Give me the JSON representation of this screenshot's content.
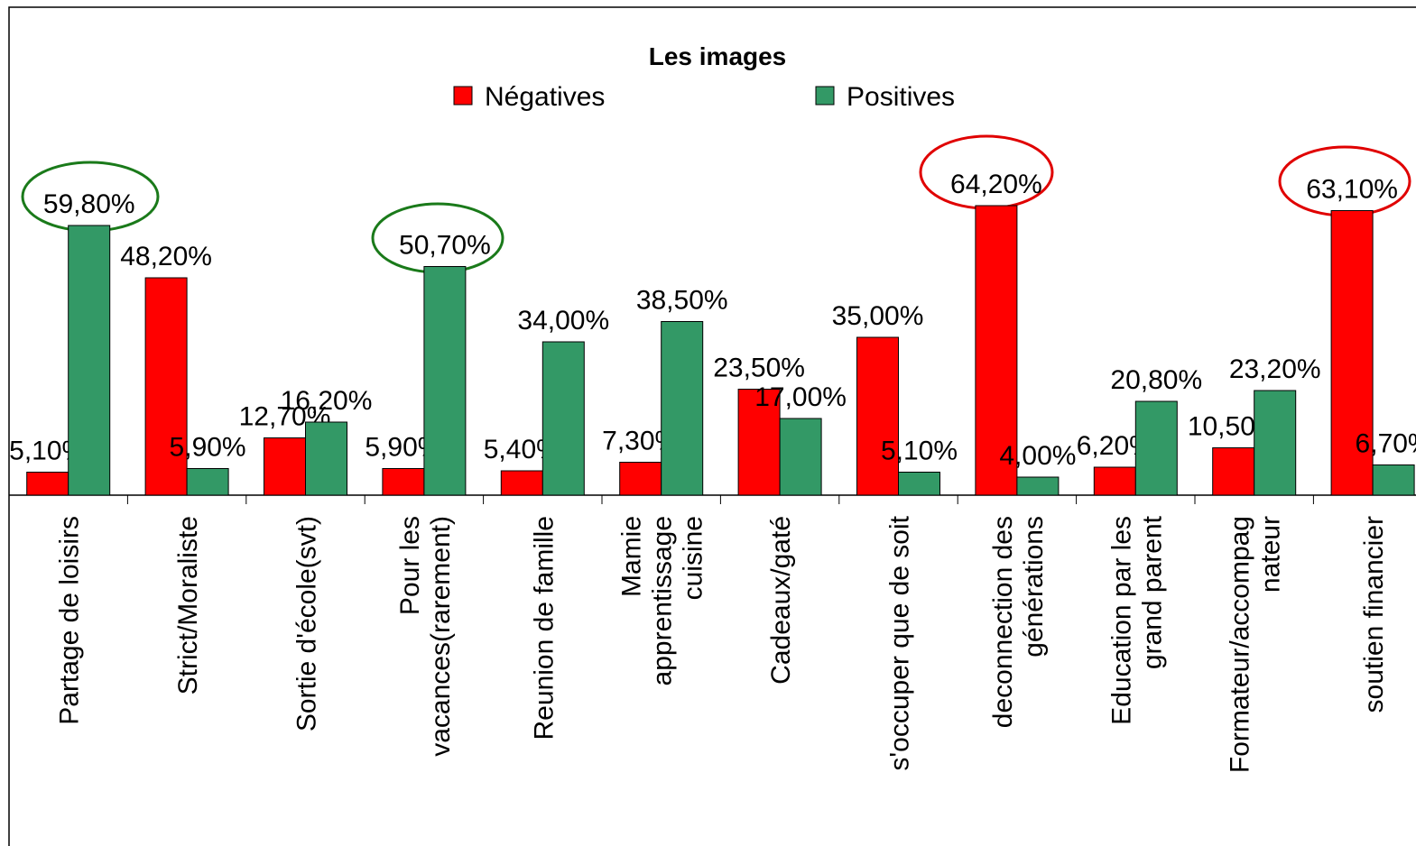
{
  "chart_data": {
    "type": "bar",
    "title": "Les images",
    "categories": [
      "Partage de loisirs",
      "Strict/Moraliste",
      "Sortie d'école(svt)",
      "Pour les\nvacances(rarement)",
      "Reunion de famille",
      "Mamie\napprentissage\ncuisine",
      "Cadeaux/gaté",
      "s'occuper que de soit",
      "deconnection des\ngénérations",
      "Education par les\ngrand parent",
      "Formateur/accompag\nnateur",
      "soutien financier"
    ],
    "series": [
      {
        "name": "Négatives",
        "color": "#ff0000",
        "values": [
          5.1,
          48.2,
          12.7,
          5.9,
          5.4,
          7.3,
          23.5,
          35.0,
          64.2,
          6.2,
          10.5,
          63.1
        ],
        "value_labels": [
          "5,10%",
          "48,20%",
          "12,70%",
          "5,90%",
          "5,40%",
          "7,30%",
          "23,50%",
          "35,00%",
          "64,20%",
          "6,20%",
          "10,50%",
          "63,10%"
        ]
      },
      {
        "name": "Positives",
        "color": "#339966",
        "values": [
          59.8,
          5.9,
          16.2,
          50.7,
          34.0,
          38.5,
          17.0,
          5.1,
          4.0,
          20.8,
          23.2,
          6.7
        ],
        "value_labels": [
          "59,80%",
          "5,90%",
          "16,20%",
          "50,70%",
          "34,00%",
          "38,50%",
          "17,00%",
          "5,10%",
          "4,00%",
          "20,80%",
          "23,20%",
          "6,70%"
        ]
      }
    ],
    "ylim": [
      0,
      70
    ],
    "legend": "top"
  }
}
